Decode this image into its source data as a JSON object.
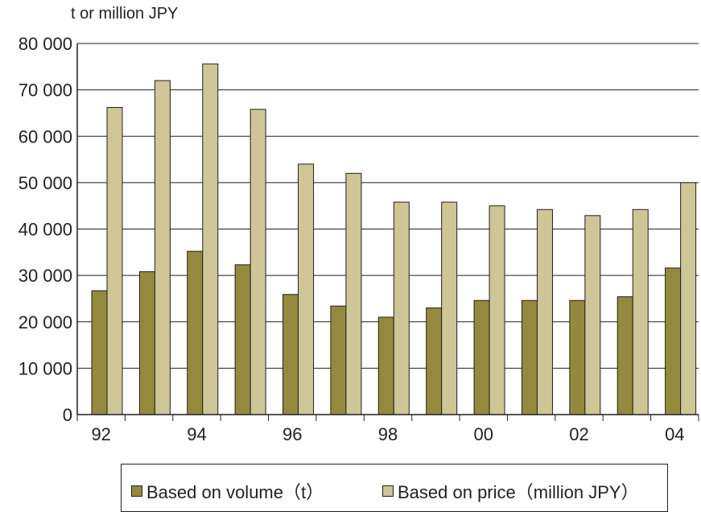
{
  "chart_data": {
    "type": "bar",
    "y_unit_label": "t or million JPY",
    "categories": [
      "92",
      "93",
      "94",
      "95",
      "96",
      "97",
      "98",
      "99",
      "00",
      "01",
      "02",
      "03",
      "04"
    ],
    "x_tick_labels": [
      "92",
      "",
      "94",
      "",
      "96",
      "",
      "98",
      "",
      "00",
      "",
      "02",
      "",
      "04"
    ],
    "y_ticks": [
      0,
      10000,
      20000,
      30000,
      40000,
      50000,
      60000,
      70000,
      80000
    ],
    "y_tick_labels": [
      "0",
      "10 000",
      "20 000",
      "30 000",
      "40 000",
      "50 000",
      "60 000",
      "70 000",
      "80 000"
    ],
    "ylim": [
      0,
      80000
    ],
    "grid": true,
    "legend_position": "bottom",
    "series": [
      {
        "name": "Based on volume（t）",
        "color": "#948a3d",
        "values": [
          26700,
          30800,
          35200,
          32300,
          25900,
          23400,
          21000,
          23000,
          24600,
          24600,
          24600,
          25400,
          31600
        ]
      },
      {
        "name": "Based on price（million JPY）",
        "color": "#cdc696",
        "values": [
          66200,
          72000,
          75600,
          65800,
          54000,
          52000,
          45800,
          45800,
          45000,
          44200,
          42900,
          44200,
          50000
        ]
      }
    ]
  }
}
